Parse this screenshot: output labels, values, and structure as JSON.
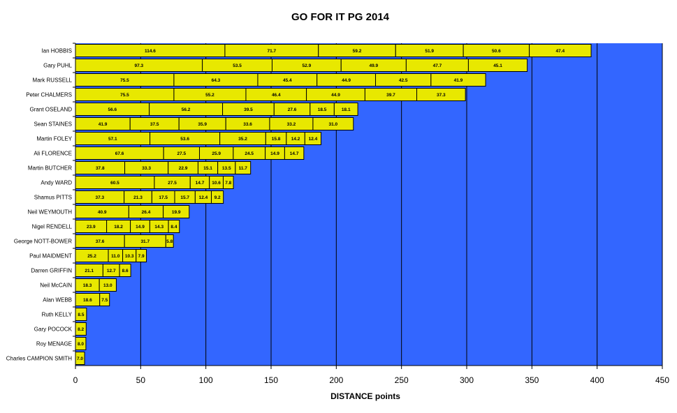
{
  "chart_data": {
    "type": "bar",
    "orientation": "horizontal",
    "stacked": true,
    "title": "GO FOR IT PG 2014",
    "xlabel": "DISTANCE points",
    "ylabel": "",
    "xlim": [
      0,
      450
    ],
    "xticks": [
      0,
      50,
      100,
      150,
      200,
      250,
      300,
      350,
      400,
      450
    ],
    "grid": true,
    "legend": "none",
    "colors": {
      "plot_bg": "#3366ff",
      "bar_fill": "#e8e800",
      "bar_edge": "#000000",
      "grid": "#000000"
    },
    "categories": [
      "Ian HOBBIS",
      "Gary PUHL",
      "Mark RUSSELL",
      "Peter CHALMERS",
      "Grant OSELAND",
      "Sean STAINES",
      "Martin FOLEY",
      "Ali FLORENCE",
      "Martin BUTCHER",
      "Andy WARD",
      "Shamus PITTS",
      "Neil WEYMOUTH",
      "Nigel RENDELL",
      "George NOTT-BOWER",
      "Paul MAIDMENT",
      "Darren GRIFFIN",
      "Neil McCAIN",
      "Alan WEBB",
      "Ruth KELLY",
      "Gary POCOCK",
      "Roy MENAGE",
      "Charles CAMPION SMITH"
    ],
    "segments": [
      [
        114.6,
        71.7,
        59.2,
        51.9,
        50.6,
        47.4
      ],
      [
        97.3,
        53.5,
        52.9,
        49.9,
        47.7,
        45.1
      ],
      [
        75.5,
        64.3,
        45.4,
        44.9,
        42.5,
        41.9
      ],
      [
        75.5,
        55.2,
        46.4,
        44.9,
        39.7,
        37.3
      ],
      [
        56.6,
        56.2,
        39.5,
        27.6,
        18.5,
        18.1
      ],
      [
        41.9,
        37.5,
        35.9,
        33.6,
        33.2,
        31.0
      ],
      [
        57.1,
        53.6,
        35.2,
        15.8,
        14.2,
        12.4
      ],
      [
        67.6,
        27.5,
        25.9,
        24.5,
        14.9,
        14.7
      ],
      [
        37.8,
        33.3,
        22.9,
        15.1,
        13.5,
        11.7
      ],
      [
        60.5,
        27.5,
        14.7,
        10.6,
        7.8
      ],
      [
        37.3,
        21.3,
        17.5,
        15.7,
        12.4,
        9.2
      ],
      [
        40.9,
        26.4,
        19.9
      ],
      [
        23.9,
        18.2,
        14.9,
        14.3,
        8.4
      ],
      [
        37.6,
        31.7,
        5.8
      ],
      [
        25.2,
        11.0,
        10.3,
        7.9
      ],
      [
        21.1,
        12.7,
        8.6
      ],
      [
        18.3,
        13.0
      ],
      [
        18.6,
        7.5
      ],
      [
        8.5
      ],
      [
        8.2
      ],
      [
        8.0
      ],
      [
        7.0
      ]
    ]
  }
}
